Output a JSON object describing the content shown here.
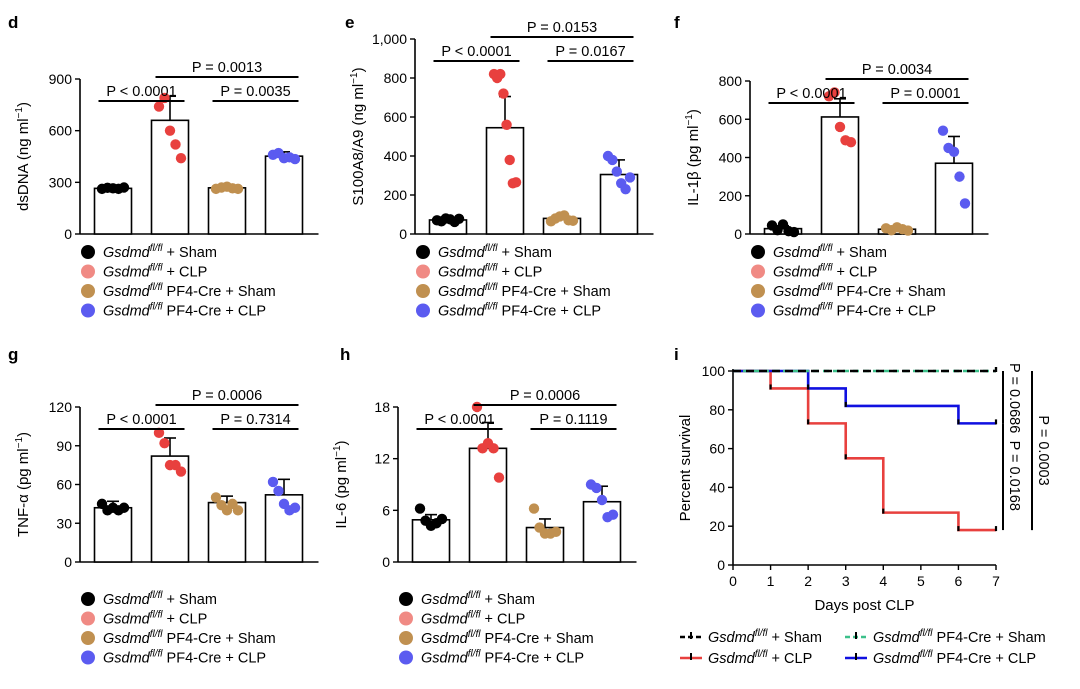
{
  "colors": {
    "sham": "#000000",
    "clp": "#e8403e",
    "pf4_sham": "#c09050",
    "pf4_clp": "#5b5bf0",
    "clp_legend": "#f08a84",
    "pf4_sham_curve": "#3cc08a",
    "pf4_clp_curve": "#1010e0",
    "clp_curve": "#e8403e"
  },
  "legend_groups": [
    {
      "gene": "Gsdmd",
      "sup": "fl/fl",
      "rest": " + Sham"
    },
    {
      "gene": "Gsdmd",
      "sup": "fl/fl",
      "rest": " + CLP"
    },
    {
      "gene": "Gsdmd",
      "sup": "fl/fl",
      "rest": "  PF4-Cre + Sham"
    },
    {
      "gene": "Gsdmd",
      "sup": "fl/fl",
      "rest": "  PF4-Cre + CLP"
    }
  ],
  "chart_data": [
    {
      "panel": "d",
      "type": "bar",
      "ylabel": "dsDNA (ng ml",
      "ylabel_sup": "−1",
      "ylabel_end": ")",
      "ylim": [
        0,
        900
      ],
      "ticks": [
        0,
        300,
        600,
        900
      ],
      "tick_labels": [
        "0",
        "300",
        "600",
        "900"
      ],
      "categories": [
        "Gsdmd fl/fl + Sham",
        "Gsdmd fl/fl + CLP",
        "Gsdmd fl/fl PF4-Cre + Sham",
        "Gsdmd fl/fl PF4-Cre + CLP"
      ],
      "means": [
        265,
        660,
        268,
        452
      ],
      "sd": [
        12,
        140,
        10,
        25
      ],
      "points": [
        [
          262,
          268,
          265,
          262,
          270
        ],
        [
          740,
          790,
          600,
          520,
          440
        ],
        [
          262,
          270,
          275,
          265,
          262
        ],
        [
          460,
          470,
          440,
          445,
          435
        ]
      ],
      "brackets": [
        {
          "label": "P < 0.0001",
          "from": 0,
          "to": 1,
          "level": 1
        },
        {
          "label": "P = 0.0035",
          "from": 2,
          "to": 3,
          "level": 1
        },
        {
          "label": "P = 0.0013",
          "from": 1,
          "to": 3,
          "level": 2
        }
      ]
    },
    {
      "panel": "e",
      "type": "bar",
      "ylabel": "S100A8/A9 (ng ml",
      "ylabel_sup": "−1",
      "ylabel_end": ")",
      "ylim": [
        0,
        1000
      ],
      "ticks": [
        0,
        200,
        400,
        600,
        800,
        1000
      ],
      "tick_labels": [
        "0",
        "200",
        "400",
        "600",
        "800",
        "1,000"
      ],
      "categories": [
        "Gsdmd fl/fl + Sham",
        "Gsdmd fl/fl + CLP",
        "Gsdmd fl/fl PF4-Cre + Sham",
        "Gsdmd fl/fl PF4-Cre + CLP"
      ],
      "means": [
        72,
        545,
        80,
        305
      ],
      "sd": [
        10,
        160,
        15,
        75
      ],
      "points": [
        [
          70,
          65,
          80,
          75,
          62,
          78
        ],
        [
          820,
          800,
          820,
          720,
          560,
          380,
          260,
          265
        ],
        [
          65,
          80,
          90,
          95,
          70,
          68
        ],
        [
          400,
          380,
          320,
          260,
          230,
          290
        ]
      ],
      "brackets": [
        {
          "label": "P < 0.0001",
          "from": 0,
          "to": 1,
          "level": 1
        },
        {
          "label": "P = 0.0167",
          "from": 2,
          "to": 3,
          "level": 1
        },
        {
          "label": "P = 0.0153",
          "from": 1,
          "to": 3,
          "level": 2
        }
      ]
    },
    {
      "panel": "f",
      "type": "bar",
      "ylabel": "IL-1β (pg ml",
      "ylabel_sup": "−1",
      "ylabel_end": ")",
      "ylim": [
        0,
        800
      ],
      "ticks": [
        0,
        200,
        400,
        600,
        800
      ],
      "tick_labels": [
        "0",
        "200",
        "400",
        "600",
        "800"
      ],
      "categories": [
        "Gsdmd fl/fl + Sham",
        "Gsdmd fl/fl + CLP",
        "Gsdmd fl/fl PF4-Cre + Sham",
        "Gsdmd fl/fl PF4-Cre + CLP"
      ],
      "means": [
        28,
        612,
        25,
        370
      ],
      "sd": [
        15,
        95,
        10,
        140
      ],
      "points": [
        [
          45,
          20,
          50,
          15,
          10
        ],
        [
          720,
          740,
          560,
          490,
          480
        ],
        [
          30,
          20,
          35,
          25,
          18
        ],
        [
          540,
          450,
          430,
          300,
          160
        ]
      ],
      "brackets": [
        {
          "label": "P < 0.0001",
          "from": 0,
          "to": 1,
          "level": 1
        },
        {
          "label": "P = 0.0001",
          "from": 2,
          "to": 3,
          "level": 1
        },
        {
          "label": "P = 0.0034",
          "from": 1,
          "to": 3,
          "level": 2
        }
      ]
    },
    {
      "panel": "g",
      "type": "bar",
      "ylabel": "TNF-α (pg ml",
      "ylabel_sup": "−1",
      "ylabel_end": ")",
      "ylim": [
        0,
        120
      ],
      "ticks": [
        0,
        30,
        60,
        90,
        120
      ],
      "tick_labels": [
        "0",
        "30",
        "60",
        "90",
        "120"
      ],
      "categories": [
        "Gsdmd fl/fl + Sham",
        "Gsdmd fl/fl + CLP",
        "Gsdmd fl/fl PF4-Cre + Sham",
        "Gsdmd fl/fl PF4-Cre + CLP"
      ],
      "means": [
        42,
        82,
        46,
        52
      ],
      "sd": [
        5,
        14,
        5,
        12
      ],
      "points": [
        [
          45,
          40,
          42,
          40,
          42
        ],
        [
          100,
          92,
          75,
          75,
          70
        ],
        [
          50,
          44,
          40,
          45,
          40
        ],
        [
          62,
          55,
          45,
          40,
          42
        ]
      ],
      "brackets": [
        {
          "label": "P < 0.0001",
          "from": 0,
          "to": 1,
          "level": 1
        },
        {
          "label": "P = 0.7314",
          "from": 2,
          "to": 3,
          "level": 1
        },
        {
          "label": "P = 0.0006",
          "from": 1,
          "to": 3,
          "level": 2
        }
      ]
    },
    {
      "panel": "h",
      "type": "bar",
      "ylabel": "IL-6 (pg ml",
      "ylabel_sup": "−1",
      "ylabel_end": ")",
      "ylim": [
        0,
        18
      ],
      "ticks": [
        0,
        6,
        12,
        18
      ],
      "tick_labels": [
        "0",
        "6",
        "12",
        "18"
      ],
      "categories": [
        "Gsdmd fl/fl + Sham",
        "Gsdmd fl/fl + CLP",
        "Gsdmd fl/fl PF4-Cre + Sham",
        "Gsdmd fl/fl PF4-Cre + CLP"
      ],
      "means": [
        4.9,
        13.2,
        4.0,
        7.0
      ],
      "sd": [
        0.6,
        3.0,
        1.0,
        1.8
      ],
      "points": [
        [
          6.2,
          4.8,
          4.2,
          4.5,
          5.0
        ],
        [
          18.0,
          13.2,
          13.8,
          13.2,
          9.8
        ],
        [
          6.2,
          4.0,
          3.3,
          3.3,
          3.5
        ],
        [
          9.0,
          8.6,
          7.2,
          5.2,
          5.5
        ]
      ],
      "brackets": [
        {
          "label": "P < 0.0001",
          "from": 0,
          "to": 1,
          "level": 1
        },
        {
          "label": "P = 0.1119",
          "from": 2,
          "to": 3,
          "level": 1
        },
        {
          "label": "P = 0.0006",
          "from": 1,
          "to": 3,
          "level": 2
        }
      ]
    },
    {
      "panel": "i",
      "type": "line",
      "xlabel": "Days post CLP",
      "ylabel": "Percent survival",
      "xlim": [
        0,
        7
      ],
      "ylim": [
        0,
        100
      ],
      "xticks": [
        0,
        1,
        2,
        3,
        4,
        5,
        6,
        7
      ],
      "yticks": [
        0,
        20,
        40,
        60,
        80,
        100
      ],
      "series": [
        {
          "name": "Gsdmd fl/fl + Sham",
          "style": "dash-black",
          "steps": [
            [
              0,
              100
            ],
            [
              7,
              100
            ]
          ]
        },
        {
          "name": "Gsdmd fl/fl PF4-Cre + Sham",
          "style": "dash-green",
          "steps": [
            [
              0,
              100
            ],
            [
              7,
              100
            ]
          ]
        },
        {
          "name": "Gsdmd fl/fl + CLP",
          "style": "solid-red",
          "steps": [
            [
              0,
              100
            ],
            [
              1,
              91
            ],
            [
              2,
              73
            ],
            [
              3,
              55
            ],
            [
              4,
              27
            ],
            [
              6,
              18
            ],
            [
              7,
              18
            ]
          ]
        },
        {
          "name": "Gsdmd fl/fl PF4-Cre + CLP",
          "style": "solid-blue",
          "steps": [
            [
              0,
              100
            ],
            [
              2,
              91
            ],
            [
              3,
              82
            ],
            [
              6,
              73
            ],
            [
              7,
              73
            ]
          ]
        }
      ],
      "p_values": [
        "P = 0.0686",
        "P = 0.0168",
        "P = 0.0003"
      ],
      "legend": [
        {
          "gene": "Gsdmd",
          "sup": "fl/fl",
          "rest": " + Sham",
          "style": "dash-black"
        },
        {
          "gene": "Gsdmd",
          "sup": "fl/fl",
          "rest": "  PF4-Cre + Sham",
          "style": "dash-green"
        },
        {
          "gene": "Gsdmd",
          "sup": "fl/fl",
          "rest": " + CLP",
          "style": "solid-red"
        },
        {
          "gene": "Gsdmd",
          "sup": "fl/fl",
          "rest": " PF4-Cre + CLP",
          "style": "solid-blue"
        }
      ]
    }
  ]
}
